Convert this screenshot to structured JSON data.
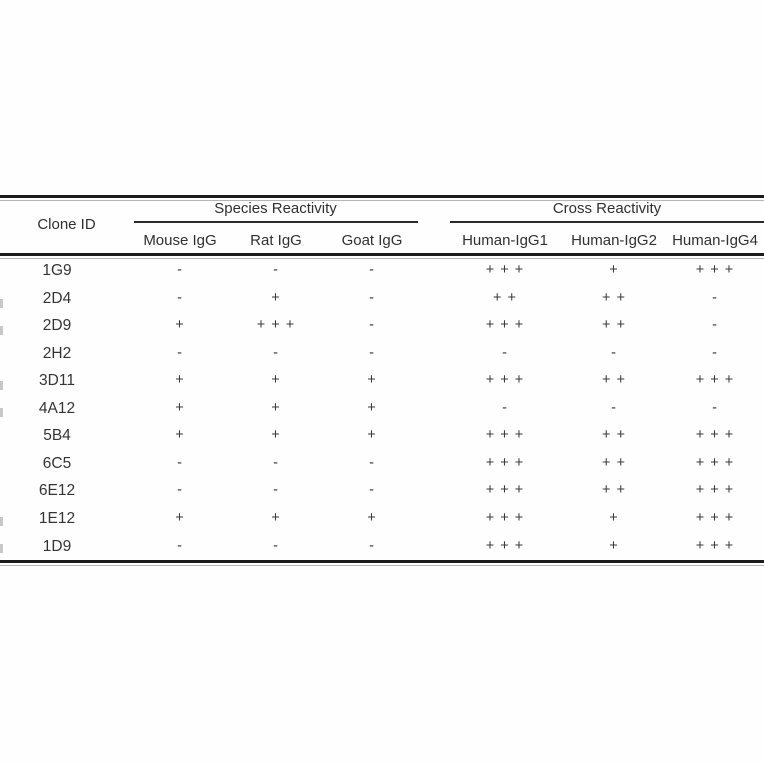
{
  "page": {
    "background": "#ffffff",
    "text_color": "#333333",
    "rule_color": "#1c1c1c"
  },
  "table": {
    "corner_header": "Clone ID",
    "groups": [
      {
        "label": "Species Reactivity",
        "columns": [
          "Mouse IgG",
          "Rat IgG",
          "Goat IgG"
        ]
      },
      {
        "label": "Cross Reactivity",
        "columns": [
          "Human-IgG1",
          "Human-IgG2",
          "Human-IgG4"
        ]
      }
    ],
    "rows": [
      {
        "clone": "1G9",
        "values": [
          "-",
          "-",
          "-",
          "+ + +",
          "+",
          "+ + +"
        ]
      },
      {
        "clone": "2D4",
        "values": [
          "-",
          "+",
          "-",
          "+ +",
          "+ +",
          "-"
        ]
      },
      {
        "clone": "2D9",
        "values": [
          "+",
          "+ + +",
          "-",
          "+ + +",
          "+ +",
          "-"
        ]
      },
      {
        "clone": "2H2",
        "values": [
          "-",
          "-",
          "-",
          "-",
          "-",
          "-"
        ]
      },
      {
        "clone": "3D11",
        "values": [
          "+",
          "+",
          "+",
          "+ + +",
          "+ +",
          "+ + +"
        ]
      },
      {
        "clone": "4A12",
        "values": [
          "+",
          "+",
          "+",
          "-",
          "-",
          "-"
        ]
      },
      {
        "clone": "5B4",
        "values": [
          "+",
          "+",
          "+",
          "+ + +",
          "+ +",
          "+ + +"
        ]
      },
      {
        "clone": "6C5",
        "values": [
          "-",
          "-",
          "-",
          "+ + +",
          "+ +",
          "+ + +"
        ]
      },
      {
        "clone": "6E12",
        "values": [
          "-",
          "-",
          "-",
          "+ + +",
          "+ +",
          "+ + +"
        ]
      },
      {
        "clone": "1E12",
        "values": [
          "+",
          "+",
          "+",
          "+ + +",
          "+",
          "+ + +"
        ]
      },
      {
        "clone": "1D9",
        "values": [
          "-",
          "-",
          "-",
          "+ + +",
          "+",
          "+ + +"
        ]
      }
    ]
  }
}
